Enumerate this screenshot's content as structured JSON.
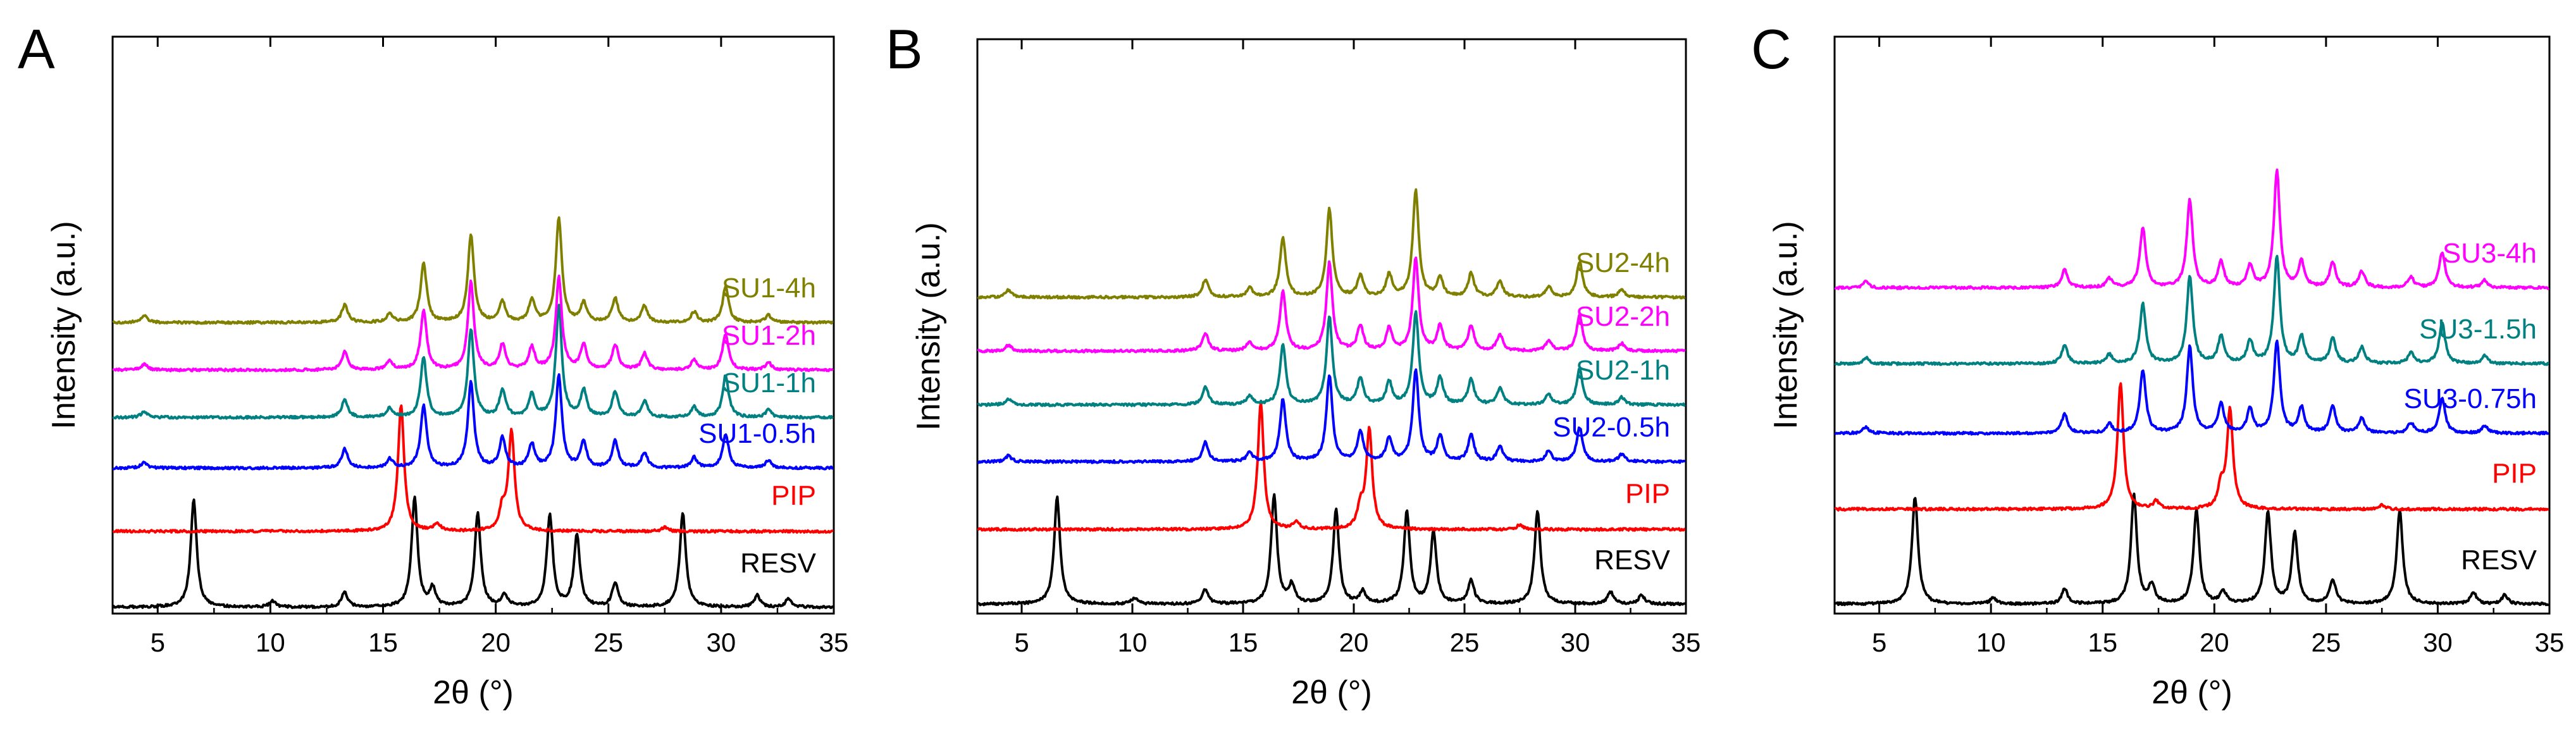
{
  "colors": {
    "RESV": "#000000",
    "PIP": "#ff0000",
    "blue": "#0000ff",
    "teal": "#008080",
    "magenta": "#ff00ff",
    "olive": "#808000"
  },
  "chart_data": [
    {
      "type": "line",
      "panel": "A",
      "xlabel": "2θ (°)",
      "ylabel": "Intensity (a.u.)",
      "xlim": [
        3,
        35
      ],
      "xticks": [
        "5",
        "10",
        "15",
        "20",
        "25",
        "30",
        "35"
      ],
      "series": [
        {
          "name": "RESV",
          "color": "#000000",
          "offset": 0,
          "peaks": [
            [
              6.6,
              72
            ],
            [
              10.1,
              4
            ],
            [
              13.3,
              10
            ],
            [
              16.4,
              73
            ],
            [
              17.2,
              12
            ],
            [
              19.2,
              63
            ],
            [
              20.4,
              8
            ],
            [
              22.4,
              62
            ],
            [
              23.6,
              48
            ],
            [
              25.3,
              16
            ],
            [
              28.3,
              63
            ],
            [
              31.6,
              8
            ],
            [
              33.0,
              6
            ]
          ]
        },
        {
          "name": "PIP",
          "color": "#ff0000",
          "offset": 120,
          "peaks": [
            [
              15.8,
              85
            ],
            [
              17.4,
              5
            ],
            [
              20.3,
              14
            ],
            [
              20.7,
              67
            ],
            [
              27.5,
              3
            ]
          ]
        },
        {
          "name": "SU1-0.5h",
          "color": "#0000ff",
          "offset": 220,
          "peaks": [
            [
              4.4,
              4
            ],
            [
              13.3,
              13
            ],
            [
              15.3,
              6
            ],
            [
              16.8,
              42
            ],
            [
              18.9,
              58
            ],
            [
              20.3,
              20
            ],
            [
              21.6,
              16
            ],
            [
              22.8,
              62
            ],
            [
              23.9,
              17
            ],
            [
              25.3,
              18
            ],
            [
              26.6,
              10
            ],
            [
              28.8,
              7
            ],
            [
              30.2,
              23
            ],
            [
              32.1,
              5
            ]
          ]
        },
        {
          "name": "SU1-1h",
          "color": "#008080",
          "offset": 300,
          "peaks": [
            [
              4.4,
              4
            ],
            [
              13.3,
              12
            ],
            [
              15.3,
              6
            ],
            [
              16.8,
              40
            ],
            [
              18.9,
              59
            ],
            [
              20.3,
              18
            ],
            [
              21.6,
              15
            ],
            [
              22.8,
              75
            ],
            [
              23.9,
              18
            ],
            [
              25.3,
              17
            ],
            [
              26.6,
              11
            ],
            [
              28.8,
              7
            ],
            [
              30.2,
              28
            ],
            [
              32.1,
              5
            ]
          ]
        },
        {
          "name": "SU1-2h",
          "color": "#ff00ff",
          "offset": 375,
          "peaks": [
            [
              4.4,
              4
            ],
            [
              13.3,
              12
            ],
            [
              15.3,
              6
            ],
            [
              16.8,
              40
            ],
            [
              18.9,
              59
            ],
            [
              20.3,
              17
            ],
            [
              21.6,
              15
            ],
            [
              22.8,
              62
            ],
            [
              23.9,
              17
            ],
            [
              25.3,
              17
            ],
            [
              26.6,
              11
            ],
            [
              28.8,
              7
            ],
            [
              30.2,
              24
            ],
            [
              32.1,
              5
            ]
          ]
        },
        {
          "name": "SU1-4h",
          "color": "#808000",
          "offset": 450,
          "peaks": [
            [
              4.4,
              5
            ],
            [
              13.3,
              12
            ],
            [
              15.3,
              6
            ],
            [
              16.8,
              40
            ],
            [
              18.9,
              59
            ],
            [
              20.3,
              14
            ],
            [
              21.6,
              15
            ],
            [
              22.8,
              70
            ],
            [
              23.9,
              13
            ],
            [
              25.3,
              16
            ],
            [
              26.6,
              11
            ],
            [
              28.8,
              7
            ],
            [
              30.2,
              24
            ],
            [
              32.1,
              5
            ]
          ]
        }
      ]
    },
    {
      "type": "line",
      "panel": "B",
      "xlabel": "2θ (°)",
      "ylabel": "Intensity (a.u.)",
      "xlim": [
        3,
        35
      ],
      "xticks": [
        "5",
        "10",
        "15",
        "20",
        "25",
        "30",
        "35"
      ],
      "series": [
        {
          "name": "RESV",
          "color": "#000000",
          "offset": 0,
          "peaks": [
            [
              6.6,
              72
            ],
            [
              10.1,
              4
            ],
            [
              13.3,
              10
            ],
            [
              16.4,
              73
            ],
            [
              17.2,
              12
            ],
            [
              19.2,
              63
            ],
            [
              20.4,
              8
            ],
            [
              22.4,
              62
            ],
            [
              23.6,
              48
            ],
            [
              25.3,
              16
            ],
            [
              28.3,
              63
            ],
            [
              31.6,
              8
            ],
            [
              33.0,
              6
            ]
          ]
        },
        {
          "name": "PIP",
          "color": "#ff0000",
          "offset": 118,
          "peaks": [
            [
              15.8,
              85
            ],
            [
              17.4,
              5
            ],
            [
              20.3,
              14
            ],
            [
              20.7,
              67
            ],
            [
              27.5,
              3
            ]
          ]
        },
        {
          "name": "SU2-0.5h",
          "color": "#0000ff",
          "offset": 225,
          "peaks": [
            [
              4.4,
              4
            ],
            [
              13.3,
              13
            ],
            [
              15.3,
              6
            ],
            [
              16.8,
              42
            ],
            [
              18.9,
              58
            ],
            [
              20.3,
              20
            ],
            [
              21.6,
              16
            ],
            [
              22.8,
              62
            ],
            [
              23.9,
              17
            ],
            [
              25.3,
              18
            ],
            [
              26.6,
              10
            ],
            [
              28.8,
              7
            ],
            [
              30.2,
              23
            ],
            [
              32.1,
              5
            ]
          ]
        },
        {
          "name": "SU2-1h",
          "color": "#008080",
          "offset": 315,
          "peaks": [
            [
              4.4,
              4
            ],
            [
              13.3,
              12
            ],
            [
              15.3,
              6
            ],
            [
              16.8,
              40
            ],
            [
              18.9,
              59
            ],
            [
              20.3,
              18
            ],
            [
              21.6,
              15
            ],
            [
              22.8,
              62
            ],
            [
              23.9,
              18
            ],
            [
              25.3,
              17
            ],
            [
              26.6,
              11
            ],
            [
              28.8,
              7
            ],
            [
              30.2,
              24
            ],
            [
              32.1,
              5
            ]
          ]
        },
        {
          "name": "SU2-2h",
          "color": "#ff00ff",
          "offset": 400,
          "peaks": [
            [
              4.4,
              4
            ],
            [
              13.3,
              12
            ],
            [
              15.3,
              6
            ],
            [
              16.8,
              40
            ],
            [
              18.9,
              59
            ],
            [
              20.3,
              17
            ],
            [
              21.6,
              15
            ],
            [
              22.8,
              62
            ],
            [
              23.9,
              17
            ],
            [
              25.3,
              17
            ],
            [
              26.6,
              11
            ],
            [
              28.8,
              7
            ],
            [
              30.2,
              24
            ],
            [
              32.1,
              5
            ]
          ]
        },
        {
          "name": "SU2-4h",
          "color": "#808000",
          "offset": 485,
          "peaks": [
            [
              4.4,
              5
            ],
            [
              13.3,
              12
            ],
            [
              15.3,
              6
            ],
            [
              16.8,
              40
            ],
            [
              18.9,
              59
            ],
            [
              20.3,
              14
            ],
            [
              21.6,
              15
            ],
            [
              22.8,
              72
            ],
            [
              23.9,
              13
            ],
            [
              25.3,
              16
            ],
            [
              26.6,
              11
            ],
            [
              28.8,
              7
            ],
            [
              30.2,
              24
            ],
            [
              32.1,
              5
            ]
          ]
        }
      ]
    },
    {
      "type": "line",
      "panel": "C",
      "xlabel": "2θ (°)",
      "ylabel": "Intensity (a.u.)",
      "xlim": [
        3,
        35
      ],
      "xticks": [
        "5",
        "10",
        "15",
        "20",
        "25",
        "30",
        "35"
      ],
      "series": [
        {
          "name": "RESV",
          "color": "#000000",
          "offset": 0,
          "peaks": [
            [
              6.6,
              72
            ],
            [
              10.1,
              4
            ],
            [
              13.3,
              10
            ],
            [
              16.4,
              73
            ],
            [
              17.2,
              12
            ],
            [
              19.2,
              63
            ],
            [
              20.4,
              8
            ],
            [
              22.4,
              62
            ],
            [
              23.6,
              48
            ],
            [
              25.3,
              16
            ],
            [
              28.3,
              63
            ],
            [
              31.6,
              8
            ],
            [
              33.0,
              6
            ]
          ]
        },
        {
          "name": "PIP",
          "color": "#ff0000",
          "offset": 150,
          "peaks": [
            [
              15.8,
              85
            ],
            [
              17.4,
              5
            ],
            [
              20.3,
              14
            ],
            [
              20.7,
              67
            ],
            [
              27.5,
              3
            ]
          ]
        },
        {
          "name": "SU3-0.75h",
          "color": "#0000ff",
          "offset": 270,
          "peaks": [
            [
              4.4,
              4
            ],
            [
              13.3,
              13
            ],
            [
              15.3,
              6
            ],
            [
              16.8,
              42
            ],
            [
              18.9,
              58
            ],
            [
              20.3,
              20
            ],
            [
              21.6,
              16
            ],
            [
              22.8,
              62
            ],
            [
              23.9,
              17
            ],
            [
              25.3,
              18
            ],
            [
              26.6,
              10
            ],
            [
              28.8,
              7
            ],
            [
              30.2,
              23
            ],
            [
              32.1,
              5
            ]
          ]
        },
        {
          "name": "SU3-1.5h",
          "color": "#008080",
          "offset": 380,
          "peaks": [
            [
              4.4,
              4
            ],
            [
              13.3,
              12
            ],
            [
              15.3,
              6
            ],
            [
              16.8,
              40
            ],
            [
              18.9,
              59
            ],
            [
              20.3,
              18
            ],
            [
              21.6,
              15
            ],
            [
              22.8,
              72
            ],
            [
              23.9,
              18
            ],
            [
              25.3,
              17
            ],
            [
              26.6,
              11
            ],
            [
              28.8,
              7
            ],
            [
              30.2,
              28
            ],
            [
              32.1,
              5
            ]
          ]
        },
        {
          "name": "SU3-4h",
          "color": "#ff00ff",
          "offset": 500,
          "peaks": [
            [
              4.4,
              4
            ],
            [
              13.3,
              12
            ],
            [
              15.3,
              6
            ],
            [
              16.8,
              40
            ],
            [
              18.9,
              59
            ],
            [
              20.3,
              17
            ],
            [
              21.6,
              15
            ],
            [
              22.8,
              78
            ],
            [
              23.9,
              17
            ],
            [
              25.3,
              17
            ],
            [
              26.6,
              11
            ],
            [
              28.8,
              7
            ],
            [
              30.2,
              24
            ],
            [
              32.1,
              5
            ]
          ]
        }
      ]
    }
  ]
}
